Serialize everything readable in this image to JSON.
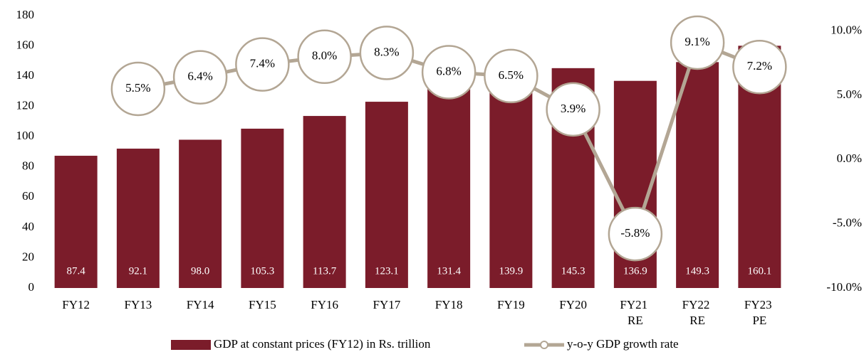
{
  "chart_data": {
    "type": "bar_line",
    "categories": [
      "FY12",
      "FY13",
      "FY14",
      "FY15",
      "FY16",
      "FY17",
      "FY18",
      "FY19",
      "FY20",
      "FY21 RE",
      "FY22 RE",
      "FY23 PE"
    ],
    "series": [
      {
        "name": "GDP at constant prices (FY12) in Rs. trillion",
        "type": "bar",
        "color": "#7b1c2a",
        "values": [
          87.4,
          92.1,
          98.0,
          105.3,
          113.7,
          123.1,
          131.4,
          139.9,
          145.3,
          136.9,
          149.3,
          160.1
        ],
        "value_labels": [
          "87.4",
          "92.1",
          "98.0",
          "105.3",
          "113.7",
          "123.1",
          "131.4",
          "139.9",
          "145.3",
          "136.9",
          "149.3",
          "160.1"
        ]
      },
      {
        "name": "y-o-y GDP growth rate",
        "type": "line",
        "axis": "y2",
        "color": "#b3a694",
        "values": [
          null,
          5.5,
          6.4,
          7.4,
          8.0,
          8.3,
          6.8,
          6.5,
          3.9,
          -5.8,
          9.1,
          7.2
        ],
        "value_labels": [
          null,
          "5.5%",
          "6.4%",
          "7.4%",
          "8.0%",
          "8.3%",
          "6.8%",
          "6.5%",
          "3.9%",
          "-5.8%",
          "9.1%",
          "7.2%"
        ]
      }
    ],
    "ylim": [
      0,
      180
    ],
    "yticks": [
      0,
      20,
      40,
      60,
      80,
      100,
      120,
      140,
      160,
      180
    ],
    "y2lim": [
      -10,
      11.2
    ],
    "y2ticks": [
      {
        "value": -10,
        "label": "-10.0%"
      },
      {
        "value": -5,
        "label": "-5.0%"
      },
      {
        "value": 0,
        "label": "0.0%"
      },
      {
        "value": 5,
        "label": "5.0%"
      },
      {
        "value": 10,
        "label": "10.0%"
      }
    ],
    "legend": "bottom"
  }
}
